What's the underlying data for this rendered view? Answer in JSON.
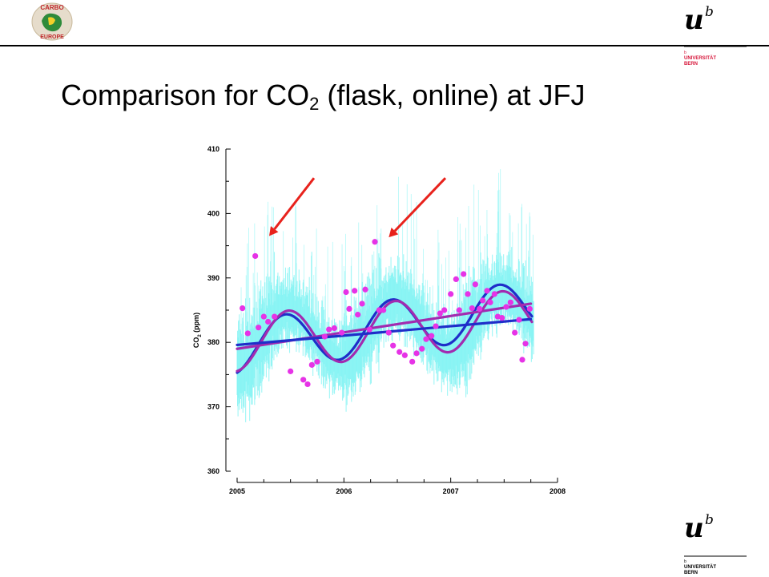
{
  "header": {
    "title_main": "Comparison for CO",
    "title_sub": "2",
    "title_rest": " (flask, online) at JFJ"
  },
  "logos": {
    "carbo_line1": "CARBO",
    "carbo_line2": "EUROPE",
    "ub_letter_u": "u",
    "ub_letter_b": "b",
    "ub_small_b": "b",
    "ub_name1": "UNIVERSITÄT",
    "ub_name2": "BERN"
  },
  "colors": {
    "online": "#7ff3f3",
    "flask": "#e633e6",
    "fit_online": "#1f2ec9",
    "fit_flask": "#a22bb0",
    "arrow": "#e8221c",
    "uni_red": "#d7183c"
  },
  "chart_data": {
    "type": "scatter",
    "xlabel": "",
    "ylabel_main": "CO",
    "ylabel_sub": "2",
    "ylabel_rest": " (ppm)",
    "xlim": [
      2005,
      2008
    ],
    "ylim": [
      360,
      410
    ],
    "xticks": [
      "2005",
      "2006",
      "2007",
      "2008"
    ],
    "yticks": [
      "360",
      "370",
      "380",
      "390",
      "400",
      "410"
    ],
    "series": [
      {
        "marker": "dot",
        "x": [
          2005.05,
          2005.1,
          2005.17,
          2005.2,
          2005.25,
          2005.29,
          2005.35,
          2005.5,
          2005.62,
          2005.66,
          2005.7,
          2005.75,
          2005.82,
          2005.86,
          2005.91,
          2005.98,
          2006.02,
          2006.05,
          2006.1,
          2006.13,
          2006.17,
          2006.2,
          2006.24,
          2006.29,
          2006.33,
          2006.37,
          2006.42,
          2006.46,
          2006.52,
          2006.57,
          2006.64,
          2006.68,
          2006.73,
          2006.77,
          2006.82,
          2006.86,
          2006.9,
          2006.94,
          2007.0,
          2007.05,
          2007.08,
          2007.12,
          2007.16,
          2007.2,
          2007.23,
          2007.27,
          2007.3,
          2007.34,
          2007.37,
          2007.41,
          2007.44,
          2007.48,
          2007.52,
          2007.56,
          2007.6,
          2007.64,
          2007.67,
          2007.7,
          2007.74
        ],
        "y": [
          385.3,
          381.4,
          393.4,
          382.3,
          384.0,
          383.2,
          384.0,
          375.5,
          374.2,
          373.5,
          376.5,
          377.0,
          380.9,
          382.0,
          382.2,
          381.5,
          387.8,
          385.2,
          388.0,
          384.3,
          386.0,
          388.2,
          382.0,
          395.6,
          385.0,
          385.0,
          381.5,
          379.5,
          378.5,
          378.0,
          377.0,
          378.3,
          379.0,
          380.5,
          381.0,
          382.5,
          384.5,
          385.0,
          387.5,
          389.8,
          385.0,
          390.6,
          387.5,
          385.3,
          389.0,
          385.2,
          386.5,
          388.0,
          386.2,
          387.5,
          384.0,
          383.8,
          385.5,
          386.2,
          381.5,
          383.5,
          377.3,
          379.8,
          385.2
        ]
      }
    ],
    "fits": [
      {
        "type": "seasonal",
        "offset": 379.85,
        "trend": 1.5,
        "amplitude": 4.35,
        "phase_year": 2005.23
      },
      {
        "type": "seasonal",
        "offset": 379.2,
        "trend": 2.3,
        "amplitude": 4.1,
        "phase_year": 2005.2
      },
      {
        "type": "linear",
        "x": [
          2005,
          2007.75
        ],
        "y": [
          379.6,
          383.6
        ]
      },
      {
        "type": "linear",
        "x": [
          2005,
          2007.75
        ],
        "y": [
          379.0,
          386.0
        ]
      }
    ],
    "annotations": [
      {
        "type": "arrow",
        "x_from": 2005.72,
        "y_from": 405.5,
        "x_to": 2005.3,
        "y_to": 396.5
      },
      {
        "type": "arrow",
        "x_from": 2006.95,
        "y_from": 405.5,
        "x_to": 2006.42,
        "y_to": 396.3
      }
    ]
  }
}
